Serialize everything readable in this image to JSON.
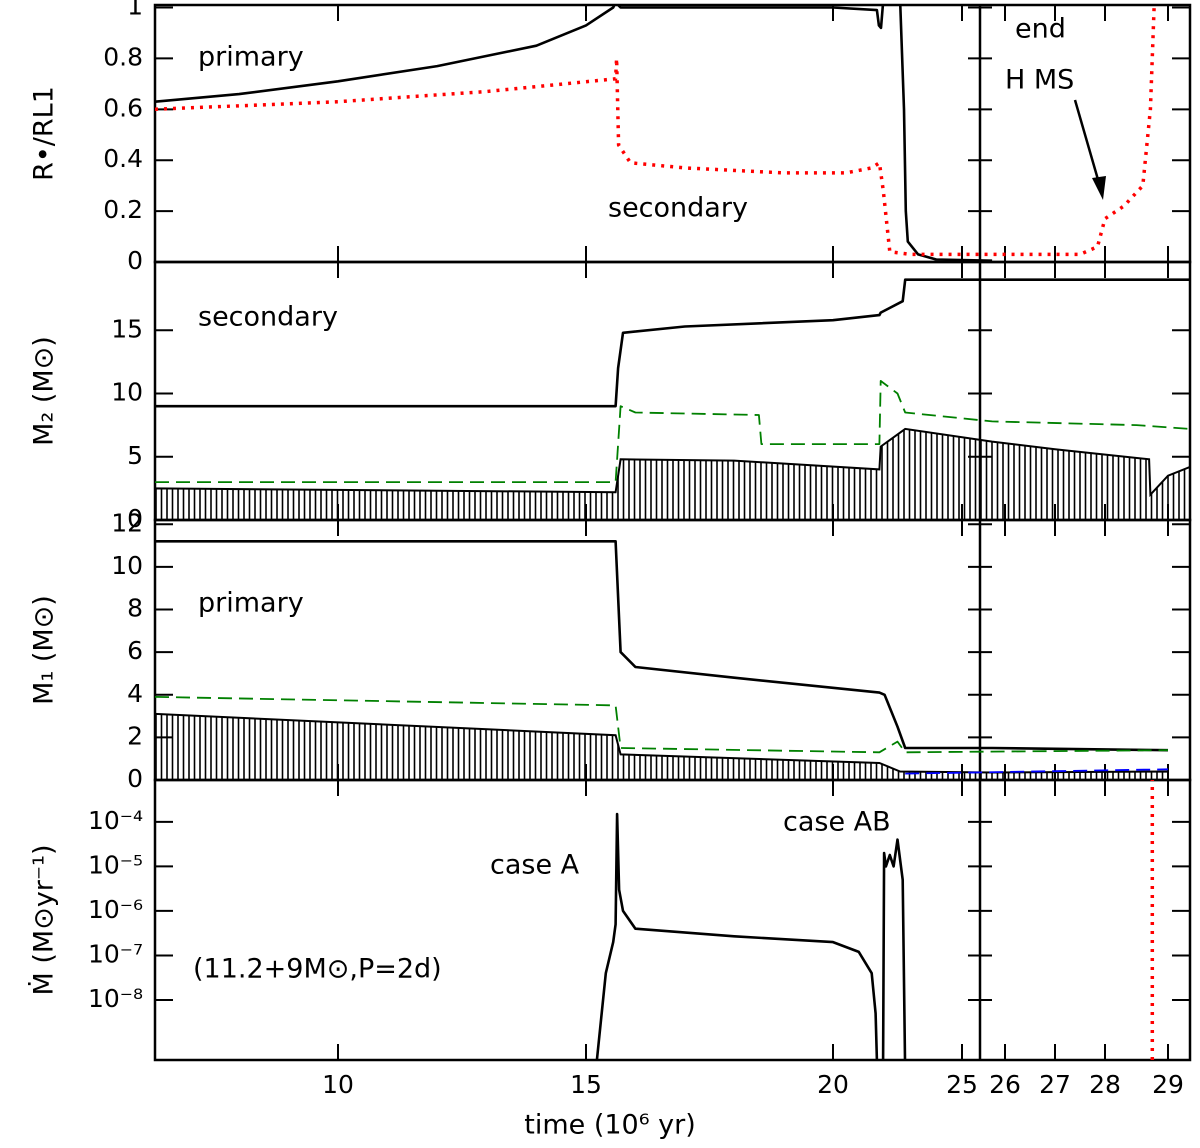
{
  "chart_data": [
    {
      "type": "line",
      "ylabel": "R•/RL1",
      "ylim": [
        0,
        1.01
      ],
      "yticks": [
        0,
        0.2,
        0.4,
        0.6,
        0.8,
        1
      ],
      "annotations": [
        {
          "text": "primary",
          "color": "#000000"
        },
        {
          "text": "secondary",
          "color": "#ff0000"
        },
        {
          "text": "end",
          "color": "#000000"
        },
        {
          "text": "H MS",
          "color": "#000000"
        }
      ],
      "series": [
        {
          "color": "#000000",
          "dash": "solid",
          "x": [
            6.3,
            8,
            10,
            12,
            14,
            15,
            15.55,
            15.6,
            15.7,
            17,
            20,
            21.7,
            21.78,
            21.86,
            21.94,
            22.2,
            22.6,
            22.75,
            22.82,
            22.9,
            23.3,
            24,
            25.7
          ],
          "values": [
            0.63,
            0.66,
            0.71,
            0.77,
            0.85,
            0.93,
            1.0,
            1.02,
            1.0,
            1.0,
            1.0,
            0.99,
            0.93,
            0.92,
            1.02,
            1.02,
            1.03,
            0.6,
            0.2,
            0.08,
            0.03,
            0.01,
            0.005
          ]
        },
        {
          "color": "#ff0000",
          "dash": "dotted",
          "x": [
            6.3,
            10,
            13,
            15.6,
            15.62,
            15.66,
            15.9,
            17,
            19,
            20.5,
            21.5,
            21.8,
            21.95,
            22.2,
            23,
            25.7,
            26,
            27.5,
            27.85,
            28,
            28.3,
            28.6,
            28.72,
            28.78
          ],
          "values": [
            0.6,
            0.63,
            0.67,
            0.72,
            0.8,
            0.46,
            0.39,
            0.37,
            0.35,
            0.35,
            0.37,
            0.39,
            0.28,
            0.04,
            0.03,
            0.03,
            0.03,
            0.03,
            0.06,
            0.17,
            0.22,
            0.3,
            0.6,
            1.0
          ]
        }
      ]
    },
    {
      "type": "line",
      "ylabel": "M₂ (M⊙)",
      "ylim": [
        0,
        20.4
      ],
      "yticks": [
        0,
        5,
        10,
        15
      ],
      "annotations": [
        {
          "text": "secondary",
          "color": "#000000"
        }
      ],
      "series": [
        {
          "color": "#000000",
          "dash": "hatch",
          "x": [
            6.3,
            15.6,
            15.7,
            18,
            21.8,
            21.85,
            22.8,
            25.7,
            27,
            28.7,
            28.72,
            29,
            29.35
          ],
          "values": [
            2.5,
            2.2,
            4.8,
            4.7,
            4.0,
            5.8,
            7.2,
            6.2,
            5.6,
            4.8,
            2.0,
            3.5,
            4.2
          ]
        },
        {
          "color": "#000000",
          "dash": "solid",
          "x": [
            6.3,
            15.6,
            15.65,
            15.75,
            17,
            20,
            21.8,
            21.85,
            22.7,
            22.8,
            25.7,
            29.35
          ],
          "values": [
            9,
            9,
            12,
            14.8,
            15.3,
            15.8,
            16.2,
            16.4,
            17.3,
            19,
            19,
            19
          ]
        },
        {
          "color": "#008000",
          "dash": "dashed",
          "x": [
            6.3,
            15.6,
            15.7,
            16,
            18.5,
            18.55,
            21.8,
            21.85,
            22.5,
            22.8,
            25.7,
            28.5,
            29.35
          ],
          "values": [
            3,
            3,
            9,
            8.5,
            8.3,
            6.0,
            6.0,
            11,
            10,
            8.5,
            7.8,
            7.5,
            7.2
          ]
        }
      ]
    },
    {
      "type": "line",
      "ylabel": "M₁ (M⊙)",
      "ylim": [
        0,
        12.2
      ],
      "yticks": [
        0,
        2,
        4,
        6,
        8,
        10,
        12
      ],
      "annotations": [
        {
          "text": "primary",
          "color": "#000000"
        }
      ],
      "series": [
        {
          "color": "#000000",
          "dash": "hatch",
          "x": [
            6.3,
            15.6,
            15.7,
            21.8,
            22.6,
            25.7,
            29
          ],
          "values": [
            3.1,
            2.1,
            1.2,
            0.8,
            0.4,
            0.35,
            0.4
          ]
        },
        {
          "color": "#000000",
          "dash": "solid",
          "x": [
            6.3,
            15.6,
            15.7,
            16,
            18,
            21.8,
            22.0,
            22.5,
            22.8,
            25.7,
            29
          ],
          "values": [
            11.2,
            11.2,
            6,
            5.3,
            4.8,
            4.1,
            4.0,
            2.5,
            1.5,
            1.5,
            1.4
          ]
        },
        {
          "color": "#008000",
          "dash": "dashed",
          "x": [
            6.3,
            15.6,
            15.7,
            21.8,
            22.5,
            22.8,
            29
          ],
          "values": [
            3.9,
            3.5,
            1.5,
            1.3,
            1.8,
            1.3,
            1.4
          ]
        },
        {
          "color": "#0000ff",
          "dash": "dashed",
          "x": [
            22.8,
            29
          ],
          "values": [
            0.3,
            0.5
          ]
        }
      ]
    },
    {
      "type": "line",
      "log": true,
      "ylabel": "Ṁ (M⊙yr⁻¹)",
      "xlabel": "time (10⁶ yr)",
      "xlim": [
        6.3,
        29.35
      ],
      "xticks": [
        10,
        15,
        20,
        25,
        26,
        27,
        28,
        29
      ],
      "ylim": [
        4.5e-10,
        0.00087
      ],
      "yticks": [
        {
          "value": 0.0001,
          "label": "10⁻⁴"
        },
        {
          "value": 1e-05,
          "label": "10⁻⁵"
        },
        {
          "value": 1e-06,
          "label": "10⁻⁶"
        },
        {
          "value": 1e-07,
          "label": "10⁻⁷"
        },
        {
          "value": 1e-08,
          "label": "10⁻⁸"
        }
      ],
      "annotations": [
        {
          "text": "case A",
          "color": "#000000"
        },
        {
          "text": "case AB",
          "color": "#000000"
        },
        {
          "text": "(11.2+9M⊙,P=2d)",
          "color": "#000000"
        }
      ],
      "series": [
        {
          "color": "#000000",
          "dash": "solid",
          "x": [
            15.22,
            15.4,
            15.55,
            15.6,
            15.63,
            15.67,
            15.75,
            16,
            18,
            20,
            21,
            21.5,
            21.65,
            21.7
          ],
          "values": [
            4.5e-10,
            4e-08,
            2e-07,
            5e-07,
            0.00015,
            3e-06,
            1e-06,
            4e-07,
            2.7e-07,
            2e-07,
            1.2e-07,
            4e-08,
            5e-09,
            4.5e-10
          ]
        },
        {
          "color": "#000000",
          "dash": "solid",
          "x": [
            21.94,
            21.98,
            22.05,
            22.2,
            22.35,
            22.5,
            22.7,
            22.79
          ],
          "values": [
            4.5e-10,
            2e-05,
            1e-05,
            1.8e-05,
            1e-05,
            4e-05,
            5e-06,
            4.5e-10
          ]
        },
        {
          "color": "#ff0000",
          "dash": "dotted",
          "x": [
            28.75,
            28.75
          ],
          "values": [
            4.5e-10,
            0.00087
          ]
        }
      ]
    }
  ]
}
